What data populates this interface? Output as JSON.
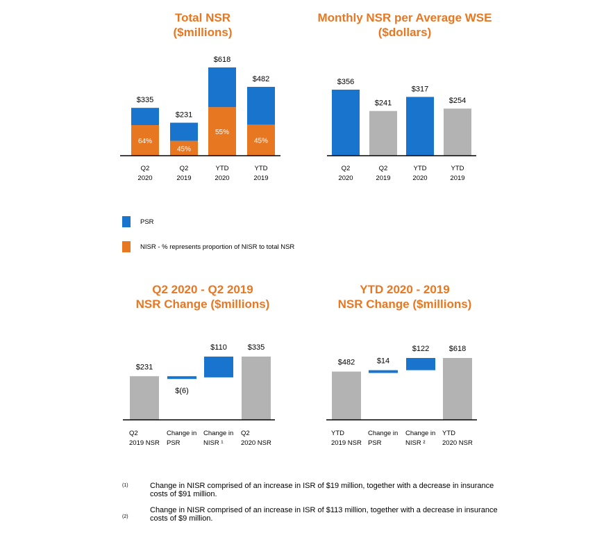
{
  "colors": {
    "psr": "#1874cd",
    "nisr": "#e87722",
    "gray": "#b3b3b3",
    "title": "#e87722",
    "axis": "#000000"
  },
  "chart_data": [
    {
      "id": "total-nsr",
      "type": "bar",
      "stacked": true,
      "title_line1": "Total NSR",
      "title_line2": "($millions)",
      "categories": [
        [
          "Q2",
          "2020"
        ],
        [
          "Q2",
          "2019"
        ],
        [
          "YTD",
          "2020"
        ],
        [
          "YTD",
          "2019"
        ]
      ],
      "totals": [
        335,
        231,
        618,
        482
      ],
      "total_labels": [
        "$335",
        "$231",
        "$618",
        "$482"
      ],
      "series": [
        {
          "name": "NISR",
          "values": [
            214,
            104,
            340,
            217
          ],
          "labels": [
            "64%",
            "45%",
            "55%",
            "45%"
          ]
        },
        {
          "name": "PSR",
          "values": [
            121,
            127,
            278,
            265
          ]
        }
      ],
      "ylim": [
        0,
        618
      ]
    },
    {
      "id": "monthly-nsr",
      "type": "bar",
      "title_line1": "Monthly NSR per Average WSE",
      "title_line2": "($dollars)",
      "categories": [
        [
          "Q2",
          "2020"
        ],
        [
          "Q2",
          "2019"
        ],
        [
          "YTD",
          "2020"
        ],
        [
          "YTD",
          "2019"
        ]
      ],
      "values": [
        356,
        241,
        317,
        254
      ],
      "labels": [
        "$356",
        "$241",
        "$317",
        "$254"
      ],
      "bar_colors": [
        "psr",
        "gray",
        "psr",
        "gray"
      ],
      "ylim": [
        0,
        356
      ]
    },
    {
      "id": "q2-change",
      "type": "waterfall",
      "title_line1": "Q2 2020 - Q2 2019",
      "title_line2": "NSR Change ($millions)",
      "categories": [
        [
          "Q2",
          "2019 NSR"
        ],
        [
          "Change in",
          "PSR"
        ],
        [
          "Change in",
          "NISR ¹"
        ],
        [
          "Q2",
          "2020 NSR"
        ]
      ],
      "start": [
        0,
        231,
        225,
        0
      ],
      "end": [
        231,
        225,
        335,
        335
      ],
      "labels": [
        "$231",
        "$(6)",
        "$110",
        "$335"
      ],
      "bar_colors": [
        "gray",
        "psr",
        "psr",
        "gray"
      ],
      "ylim": [
        0,
        335
      ]
    },
    {
      "id": "ytd-change",
      "type": "waterfall",
      "title_line1": "YTD 2020 - 2019",
      "title_line2": "NSR Change ($millions)",
      "categories": [
        [
          "YTD",
          "2019 NSR"
        ],
        [
          "Change in",
          "PSR"
        ],
        [
          "Change in",
          "NISR ²"
        ],
        [
          "YTD",
          "2020 NSR"
        ]
      ],
      "start": [
        0,
        482,
        496,
        0
      ],
      "end": [
        482,
        496,
        618,
        618
      ],
      "labels": [
        "$482",
        "$14",
        "$122",
        "$618"
      ],
      "bar_colors": [
        "gray",
        "psr",
        "psr",
        "gray"
      ],
      "ylim": [
        0,
        618
      ]
    }
  ],
  "legend": [
    {
      "label": "PSR",
      "color": "psr"
    },
    {
      "label": "NISR - % represents proportion of NISR to total NSR",
      "color": "nisr"
    }
  ],
  "footnotes": [
    {
      "num": "(1)",
      "text": "Change in NISR comprised of an increase in ISR of $19 million, together with a decrease in insurance costs of $91 million."
    },
    {
      "num": "(2)",
      "text": "Change in NISR comprised of an increase in ISR of $113 million, together with a decrease in insurance costs of $9 million."
    }
  ]
}
